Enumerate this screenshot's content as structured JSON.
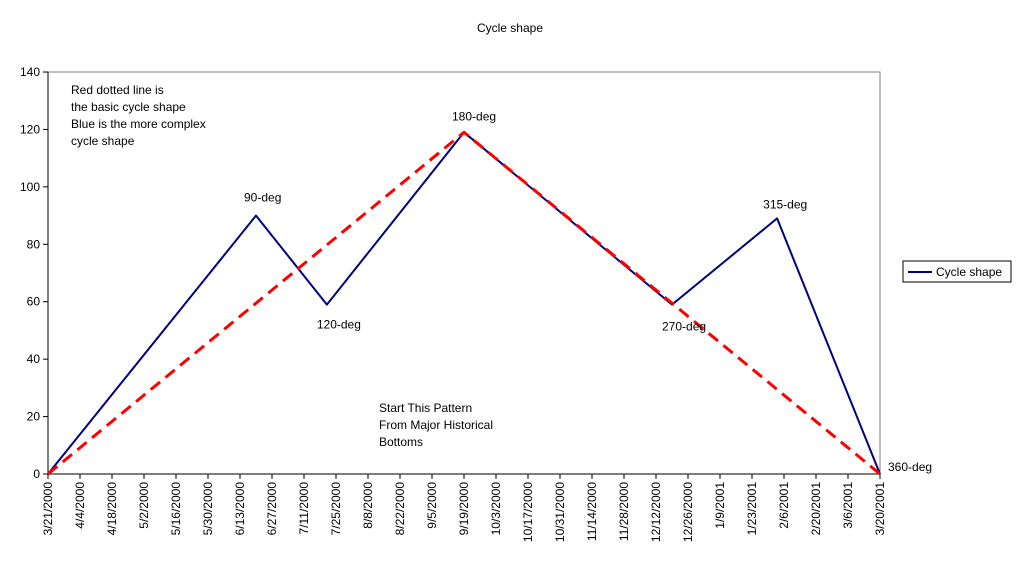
{
  "chart_data": {
    "type": "line",
    "title": "Cycle shape",
    "xlabel": "",
    "ylabel": "",
    "ylim": [
      0,
      140
    ],
    "yticks": [
      0,
      20,
      40,
      60,
      80,
      100,
      120,
      140
    ],
    "x_tick_labels": [
      "3/21/2000",
      "4/4/2000",
      "4/18/2000",
      "5/2/2000",
      "5/16/2000",
      "5/30/2000",
      "6/13/2000",
      "6/27/2000",
      "7/11/2000",
      "7/25/2000",
      "8/8/2000",
      "8/22/2000",
      "9/5/2000",
      "9/19/2000",
      "10/3/2000",
      "10/17/2000",
      "10/31/2000",
      "11/14/2000",
      "11/28/2000",
      "12/12/2000",
      "12/26/2000",
      "1/9/2001",
      "1/23/2001",
      "2/6/2001",
      "2/20/2001",
      "3/6/2001",
      "3/20/2001"
    ],
    "grid": false,
    "legend_position": "right",
    "series": [
      {
        "name": "Cycle shape",
        "color": "#000080",
        "style": "solid",
        "points": [
          {
            "x": "3/21/2000",
            "y": 0
          },
          {
            "x": "6/20/2000",
            "y": 90
          },
          {
            "x": "7/21/2000",
            "y": 59
          },
          {
            "x": "9/19/2000",
            "y": 119
          },
          {
            "x": "12/19/2000",
            "y": 59
          },
          {
            "x": "2/3/2001",
            "y": 89
          },
          {
            "x": "3/20/2001",
            "y": 0
          }
        ]
      },
      {
        "color": "#ff0000",
        "style": "dashed",
        "points": [
          {
            "x": "3/21/2000",
            "y": 0
          },
          {
            "x": "9/19/2000",
            "y": 119
          },
          {
            "x": "3/20/2001",
            "y": 0
          }
        ]
      }
    ],
    "annotations": [
      {
        "text": "90-deg",
        "x": "6/20/2000",
        "y": 90
      },
      {
        "text": "120-deg",
        "x": "7/21/2000",
        "y": 59
      },
      {
        "text": "180-deg",
        "x": "9/19/2000",
        "y": 119
      },
      {
        "text": "270-deg",
        "x": "12/19/2000",
        "y": 59
      },
      {
        "text": "315-deg",
        "x": "2/3/2001",
        "y": 89
      },
      {
        "text": "360-deg",
        "x": "3/20/2001",
        "y": 0
      }
    ],
    "notes": {
      "legend_note": [
        "Red dotted line is",
        "the basic cycle shape",
        "Blue is the more complex",
        "cycle shape"
      ],
      "pattern_note": [
        "Start This Pattern",
        "From Major Historical",
        "Bottoms"
      ]
    }
  }
}
